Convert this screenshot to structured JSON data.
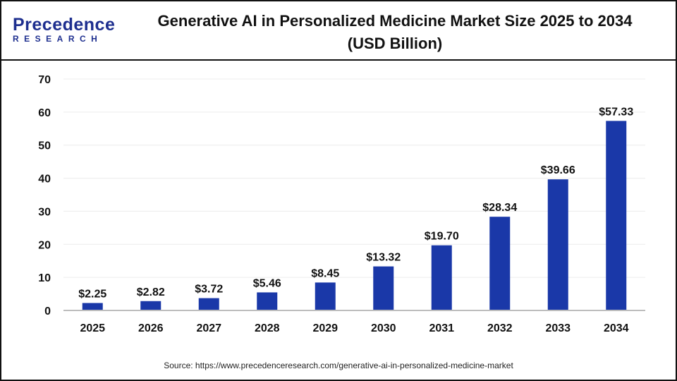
{
  "logo": {
    "line1": "Precedence",
    "line2": "RESEARCH"
  },
  "title": "Generative AI in Personalized Medicine Market Size 2025 to 2034",
  "subtitle": "(USD Billion)",
  "source": "Source: https://www.precedenceresearch.com/generative-ai-in-personalized-medicine-market",
  "chart_data": {
    "type": "bar",
    "title": "Generative AI in Personalized Medicine Market Size 2025 to 2034 (USD Billion)",
    "categories": [
      "2025",
      "2026",
      "2027",
      "2028",
      "2029",
      "2030",
      "2031",
      "2032",
      "2033",
      "2034"
    ],
    "values": [
      2.25,
      2.82,
      3.72,
      5.46,
      8.45,
      13.32,
      19.7,
      28.34,
      39.66,
      57.33
    ],
    "data_labels": [
      "$2.25",
      "$2.82",
      "$3.72",
      "$5.46",
      "$8.45",
      "$13.32",
      "$19.70",
      "$28.34",
      "$39.66",
      "$57.33"
    ],
    "yticks": [
      0,
      10,
      20,
      30,
      40,
      50,
      60,
      70
    ],
    "ylim": [
      0,
      70
    ],
    "grid": true,
    "bar_color": "#1a38a8"
  }
}
